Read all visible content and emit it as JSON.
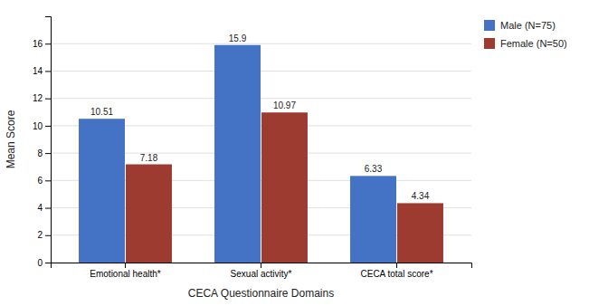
{
  "chart_data": {
    "type": "bar",
    "categories": [
      "Emotional health*",
      "Sexual activity*",
      "CECA total score*"
    ],
    "series": [
      {
        "name": "Male (N=75)",
        "color": "#4472C4",
        "values": [
          10.51,
          15.9,
          6.33
        ]
      },
      {
        "name": "Female (N=50)",
        "color": "#9E3B31",
        "values": [
          7.18,
          10.97,
          4.34
        ]
      }
    ],
    "xlabel": "CECA Questionnaire Domains",
    "ylabel": "Mean Score",
    "ylim": [
      0,
      18
    ],
    "yticks": [
      0,
      2,
      4,
      6,
      8,
      10,
      12,
      14,
      16
    ],
    "grid": true,
    "legend": "upper right",
    "data_labels": true
  }
}
